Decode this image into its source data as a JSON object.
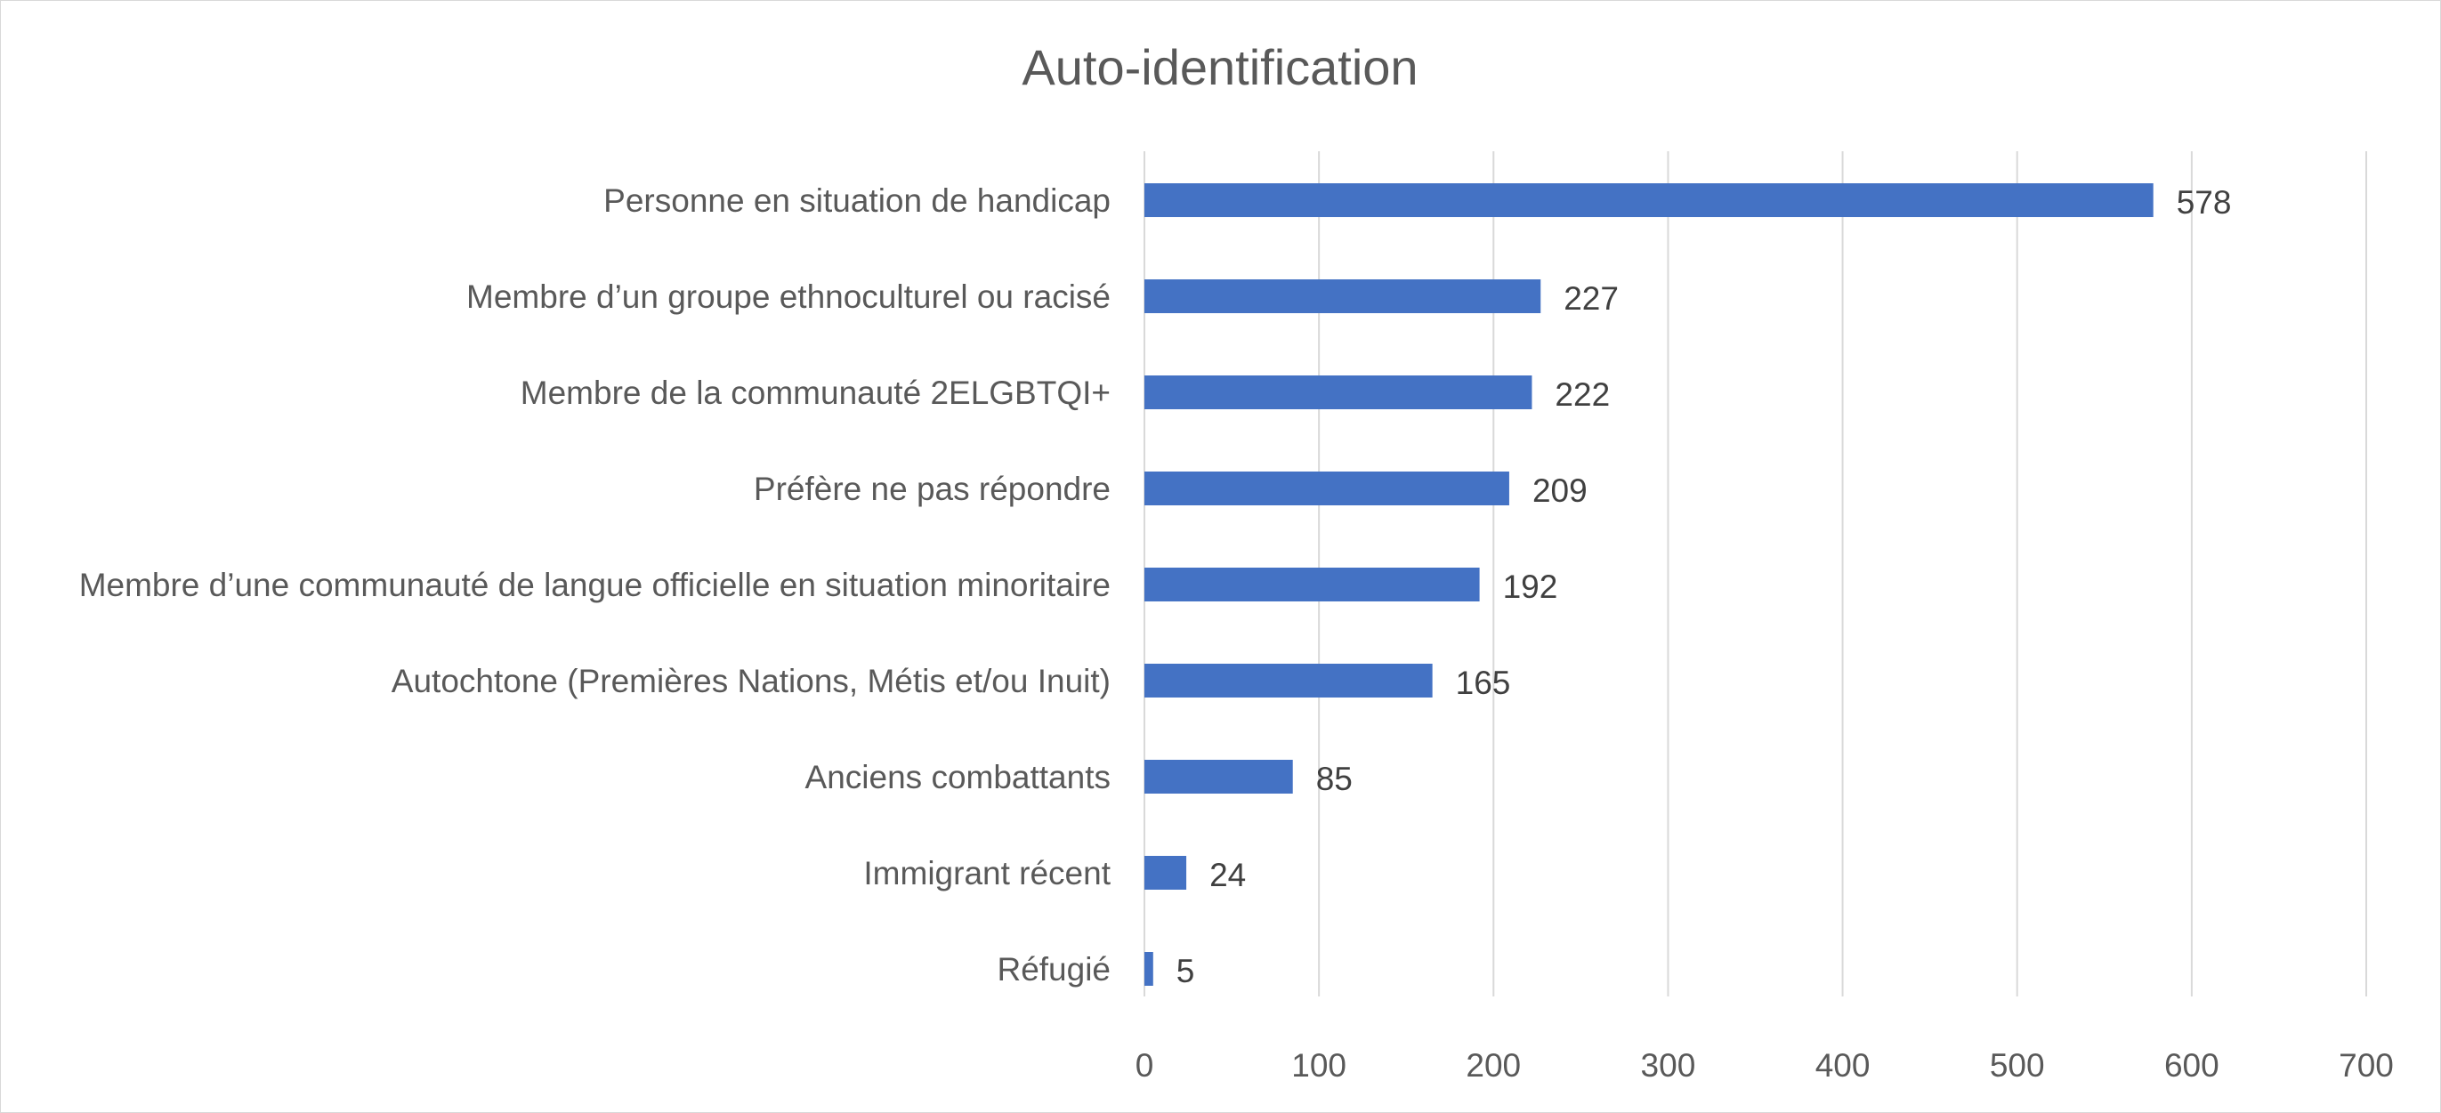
{
  "chart_data": {
    "type": "bar",
    "orientation": "horizontal",
    "title": "Auto-identification",
    "xlabel": "",
    "ylabel": "",
    "categories": [
      "Personne en situation de handicap",
      "Membre d’un groupe ethnoculturel ou racisé",
      "Membre de la communauté 2ELGBTQI+",
      "Préfère ne pas répondre",
      "Membre d’une communauté de langue officielle en situation minoritaire",
      "Autochtone (Premières Nations, Métis et/ou Inuit)",
      "Anciens combattants",
      "Immigrant récent",
      "Réfugié"
    ],
    "values": [
      578,
      227,
      222,
      209,
      192,
      165,
      85,
      24,
      5
    ],
    "xlim": [
      0,
      700
    ],
    "xticks": [
      0,
      100,
      200,
      300,
      400,
      500,
      600,
      700
    ],
    "grid": "vertical",
    "legend": "none",
    "data_labels": true,
    "colors": {
      "bar": "#4472c4",
      "grid": "#d9d9d9",
      "text": "#595959",
      "data_label": "#404040",
      "border": "#d9d9d9"
    }
  }
}
